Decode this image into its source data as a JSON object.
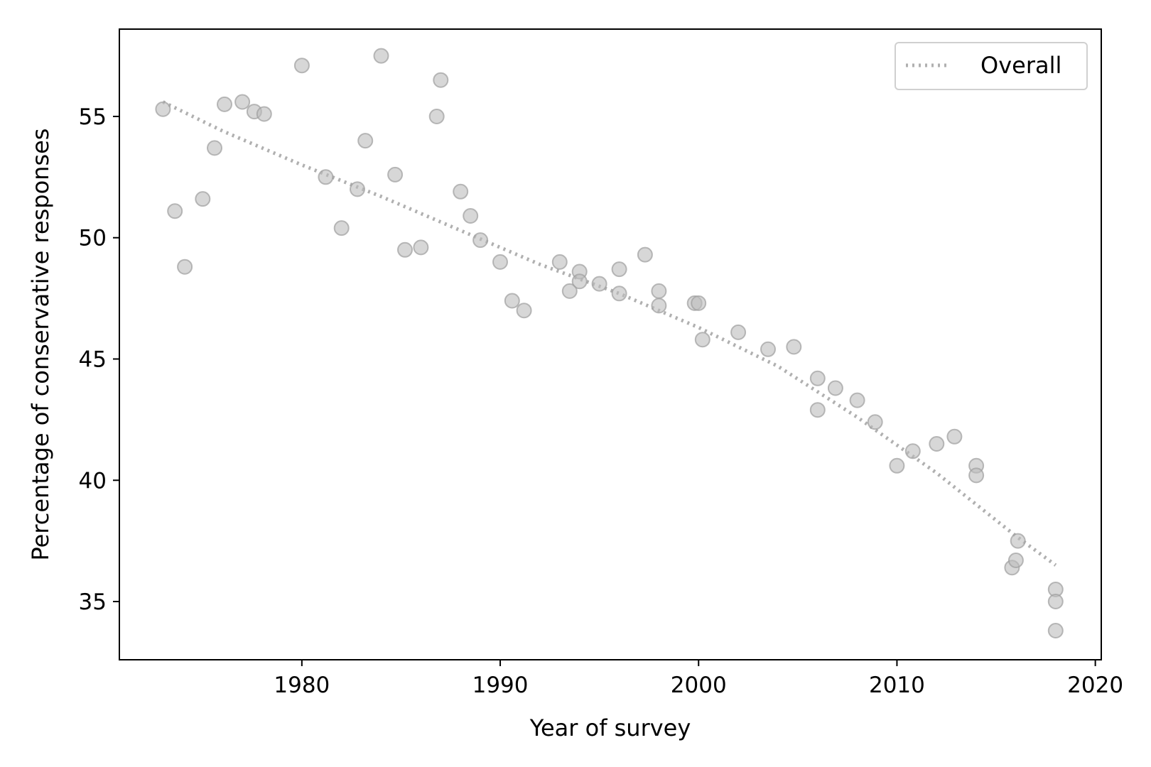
{
  "chart_data": {
    "type": "scatter",
    "title": "",
    "xlabel": "Year of survey",
    "ylabel": "Percentage of conservative responses",
    "xlim": [
      1970.8,
      2020.3
    ],
    "ylim": [
      32.6,
      58.6
    ],
    "xticks": [
      1980,
      1990,
      2000,
      2010,
      2020
    ],
    "yticks": [
      35,
      40,
      45,
      50,
      55
    ],
    "grid": false,
    "legend": {
      "placement": "top-right",
      "entries": [
        {
          "label": "Overall",
          "style": "dotted-line"
        }
      ]
    },
    "colors": {
      "points": "#bdbdbd",
      "point_edge": "#9e9e9e",
      "trend": "#b0b0b0"
    },
    "points": [
      {
        "x": 1973.0,
        "y": 55.3
      },
      {
        "x": 1973.6,
        "y": 51.1
      },
      {
        "x": 1974.1,
        "y": 48.8
      },
      {
        "x": 1975.0,
        "y": 51.6
      },
      {
        "x": 1975.6,
        "y": 53.7
      },
      {
        "x": 1976.1,
        "y": 55.5
      },
      {
        "x": 1977.0,
        "y": 55.6
      },
      {
        "x": 1977.6,
        "y": 55.2
      },
      {
        "x": 1978.1,
        "y": 55.1
      },
      {
        "x": 1980.0,
        "y": 57.1
      },
      {
        "x": 1981.2,
        "y": 52.5
      },
      {
        "x": 1982.0,
        "y": 50.4
      },
      {
        "x": 1982.8,
        "y": 52.0
      },
      {
        "x": 1983.2,
        "y": 54.0
      },
      {
        "x": 1984.0,
        "y": 57.5
      },
      {
        "x": 1984.7,
        "y": 52.6
      },
      {
        "x": 1985.2,
        "y": 49.5
      },
      {
        "x": 1986.0,
        "y": 49.6
      },
      {
        "x": 1986.8,
        "y": 55.0
      },
      {
        "x": 1987.0,
        "y": 56.5
      },
      {
        "x": 1988.0,
        "y": 51.9
      },
      {
        "x": 1988.5,
        "y": 50.9
      },
      {
        "x": 1989.0,
        "y": 49.9
      },
      {
        "x": 1990.0,
        "y": 49.0
      },
      {
        "x": 1990.6,
        "y": 47.4
      },
      {
        "x": 1991.2,
        "y": 47.0
      },
      {
        "x": 1993.0,
        "y": 49.0
      },
      {
        "x": 1993.5,
        "y": 47.8
      },
      {
        "x": 1994.0,
        "y": 48.6
      },
      {
        "x": 1994.0,
        "y": 48.2
      },
      {
        "x": 1995.0,
        "y": 48.1
      },
      {
        "x": 1996.0,
        "y": 48.7
      },
      {
        "x": 1996.0,
        "y": 47.7
      },
      {
        "x": 1997.3,
        "y": 49.3
      },
      {
        "x": 1998.0,
        "y": 47.8
      },
      {
        "x": 1998.0,
        "y": 47.2
      },
      {
        "x": 1999.8,
        "y": 47.3
      },
      {
        "x": 2000.0,
        "y": 47.3
      },
      {
        "x": 2000.2,
        "y": 45.8
      },
      {
        "x": 2002.0,
        "y": 46.1
      },
      {
        "x": 2003.5,
        "y": 45.4
      },
      {
        "x": 2004.8,
        "y": 45.5
      },
      {
        "x": 2006.0,
        "y": 44.2
      },
      {
        "x": 2006.0,
        "y": 42.9
      },
      {
        "x": 2006.9,
        "y": 43.8
      },
      {
        "x": 2008.0,
        "y": 43.3
      },
      {
        "x": 2008.9,
        "y": 42.4
      },
      {
        "x": 2010.0,
        "y": 40.6
      },
      {
        "x": 2010.8,
        "y": 41.2
      },
      {
        "x": 2012.0,
        "y": 41.5
      },
      {
        "x": 2012.9,
        "y": 41.8
      },
      {
        "x": 2014.0,
        "y": 40.6
      },
      {
        "x": 2014.0,
        "y": 40.2
      },
      {
        "x": 2015.8,
        "y": 36.4
      },
      {
        "x": 2016.0,
        "y": 36.7
      },
      {
        "x": 2016.1,
        "y": 37.5
      },
      {
        "x": 2018.0,
        "y": 35.5
      },
      {
        "x": 2018.0,
        "y": 35.0
      },
      {
        "x": 2018.0,
        "y": 33.8
      }
    ],
    "series": [
      {
        "name": "Overall",
        "x": [
          1973.0,
          1976.0,
          1980.0,
          1984.0,
          1988.0,
          1992.0,
          1996.0,
          2000.0,
          2004.0,
          2008.0,
          2012.0,
          2016.0,
          2018.0
        ],
        "y": [
          55.6,
          54.4,
          53.0,
          51.7,
          50.3,
          48.9,
          47.7,
          46.3,
          44.7,
          42.6,
          40.3,
          37.7,
          36.5
        ]
      }
    ]
  }
}
